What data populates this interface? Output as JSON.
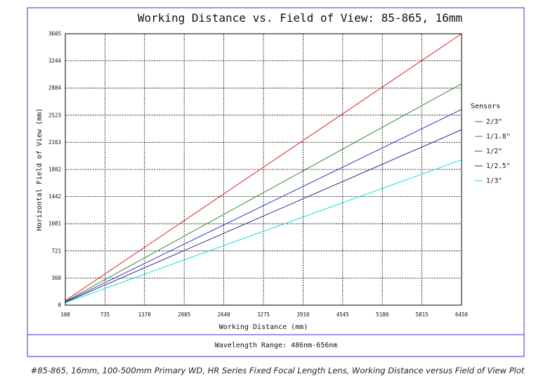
{
  "chart_data": {
    "type": "line",
    "title": "Working Distance vs. Field of View: 85-865, 16mm",
    "xlabel": "Working Distance (mm)",
    "ylabel": "Horizontal Field of View (mm)",
    "x_ticks": [
      "100",
      "735",
      "1370",
      "2005",
      "2640",
      "3275",
      "3910",
      "4545",
      "5180",
      "5815",
      "6450"
    ],
    "y_ticks": [
      "0",
      "360",
      "721",
      "1081",
      "1442",
      "1802",
      "2163",
      "2523",
      "2884",
      "3244",
      "3605"
    ],
    "xlim": [
      100,
      6450
    ],
    "ylim": [
      0,
      3605
    ],
    "grid": true,
    "legend_title": "Sensors",
    "legend_position": "right",
    "series": [
      {
        "name": "2/3\"",
        "color": "#e02020",
        "x": [
          100,
          6450
        ],
        "y": [
          60,
          3605
        ]
      },
      {
        "name": "1/1.8\"",
        "color": "#2e8b2e",
        "x": [
          100,
          6450
        ],
        "y": [
          50,
          2940
        ]
      },
      {
        "name": "1/2\"",
        "color": "#3333cc",
        "x": [
          100,
          6450
        ],
        "y": [
          43,
          2600
        ]
      },
      {
        "name": "1/2.5\"",
        "color": "#2a2a88",
        "x": [
          100,
          6450
        ],
        "y": [
          38,
          2330
        ]
      },
      {
        "name": "1/3\"",
        "color": "#22dddd",
        "x": [
          100,
          6450
        ],
        "y": [
          32,
          1930
        ]
      }
    ]
  },
  "footer": {
    "wavelength": "Wavelength Range: 486nm-656nm"
  },
  "caption": "#85-865, 16mm, 100-500mm Primary WD, HR Series Fixed Focal Length Lens, Working Distance versus Field of View Plot",
  "colors": {
    "frame_border": "#3333cc",
    "grid": "#000000"
  }
}
